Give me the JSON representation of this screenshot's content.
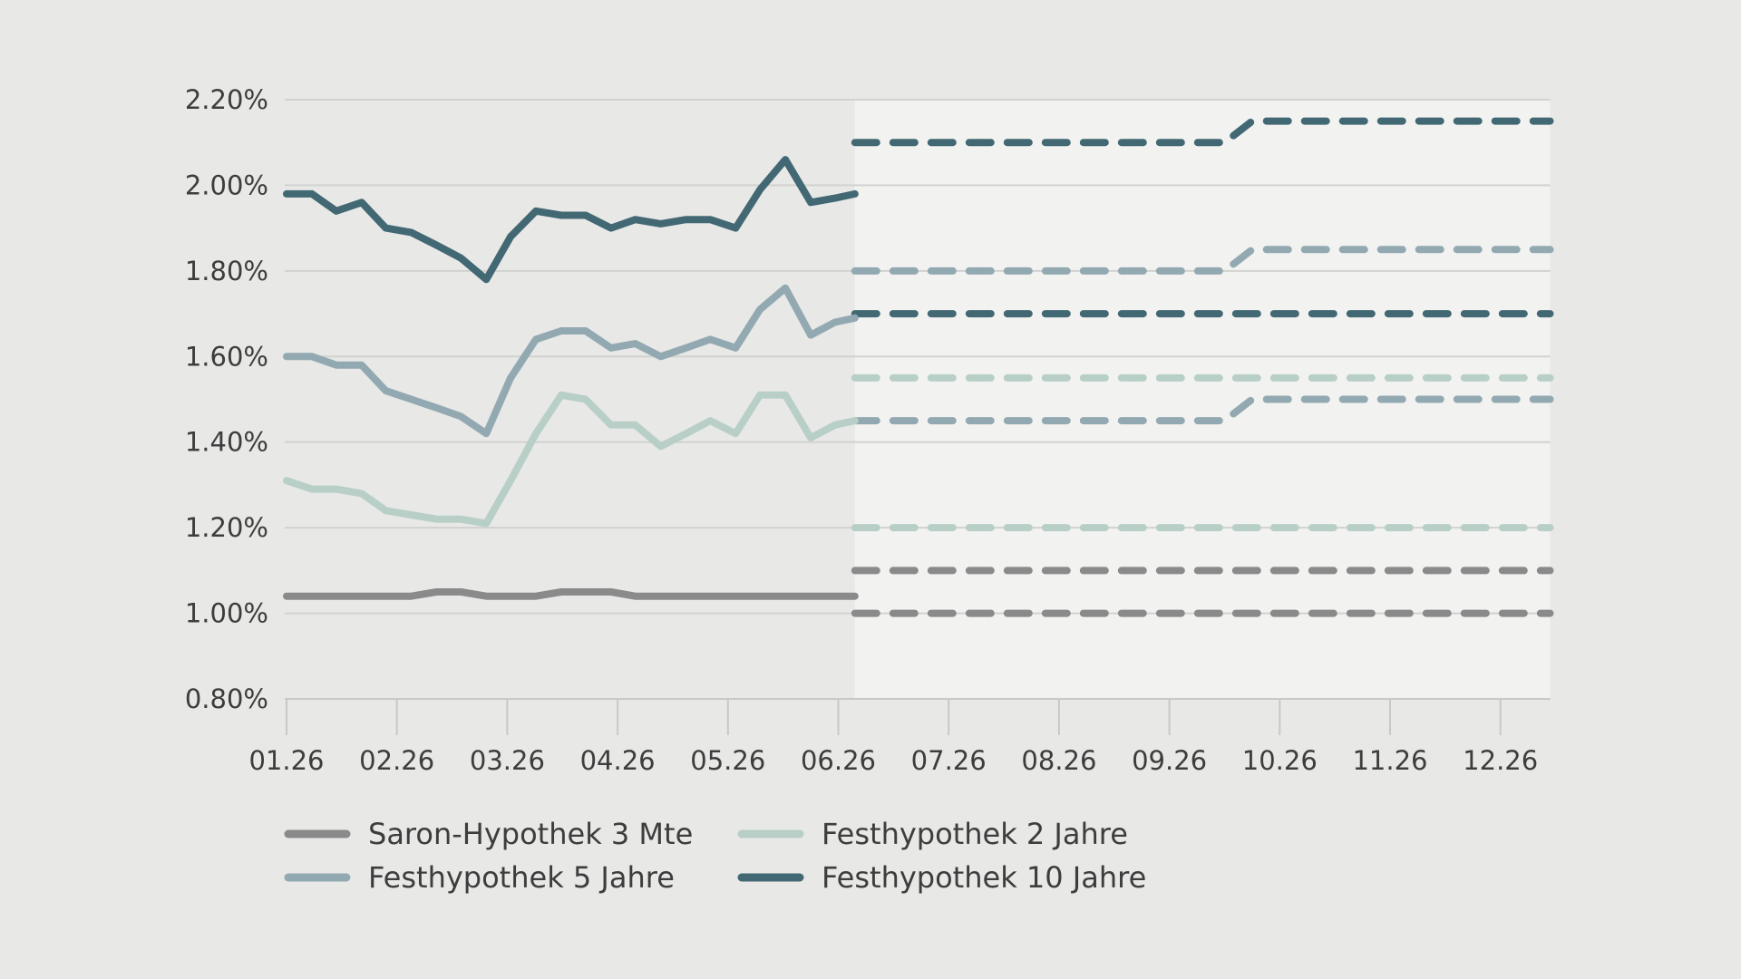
{
  "chart_data": {
    "type": "line",
    "ylim": [
      0.8,
      2.2
    ],
    "xlim": [
      0,
      11.45
    ],
    "y_ticks": [
      {
        "value": 0.8,
        "label": "0.80%"
      },
      {
        "value": 1.0,
        "label": "1.00%"
      },
      {
        "value": 1.2,
        "label": "1.20%"
      },
      {
        "value": 1.4,
        "label": "1.40%"
      },
      {
        "value": 1.6,
        "label": "1.60%"
      },
      {
        "value": 1.8,
        "label": "1.80%"
      },
      {
        "value": 2.0,
        "label": "2.00%"
      },
      {
        "value": 2.2,
        "label": "2.20%"
      }
    ],
    "x_ticks": [
      {
        "value": 0,
        "label": "01.26"
      },
      {
        "value": 1,
        "label": "02.26"
      },
      {
        "value": 2,
        "label": "03.26"
      },
      {
        "value": 3,
        "label": "04.26"
      },
      {
        "value": 4,
        "label": "05.26"
      },
      {
        "value": 5,
        "label": "06.26"
      },
      {
        "value": 6,
        "label": "07.26"
      },
      {
        "value": 7,
        "label": "08.26"
      },
      {
        "value": 8,
        "label": "09.26"
      },
      {
        "value": 9,
        "label": "10.26"
      },
      {
        "value": 10,
        "label": "11.26"
      },
      {
        "value": 11,
        "label": "12.26"
      }
    ],
    "forecast_start": 5.15,
    "grid": true,
    "legend_position": "bottom-left",
    "colors": {
      "saron": "#8a8a8a",
      "fix5": "#93a9b1",
      "fix2": "#b8cfc7",
      "fix10": "#426873",
      "background": "#e8e8e7",
      "forecast_background": "#f2f2f1",
      "grid": "#d2d2d0",
      "axis": "#c8c8c6"
    },
    "series": [
      {
        "key": "saron",
        "name": "Saron-Hypothek 3 Mte",
        "color": "#8a8a8a",
        "x": [
          0,
          0.23,
          0.45,
          0.68,
          0.9,
          1.13,
          1.36,
          1.58,
          1.81,
          2.03,
          2.26,
          2.49,
          2.71,
          2.94,
          3.16,
          3.39,
          3.62,
          3.84,
          4.07,
          4.29,
          4.52,
          4.75,
          4.97,
          5.15
        ],
        "values": [
          1.04,
          1.04,
          1.04,
          1.04,
          1.04,
          1.04,
          1.05,
          1.05,
          1.04,
          1.04,
          1.04,
          1.05,
          1.05,
          1.05,
          1.04,
          1.04,
          1.04,
          1.04,
          1.04,
          1.04,
          1.04,
          1.04,
          1.04,
          1.04
        ]
      },
      {
        "key": "fix2",
        "name": "Festhypothek 2 Jahre",
        "color": "#b8cfc7",
        "x": [
          0,
          0.23,
          0.45,
          0.68,
          0.9,
          1.13,
          1.36,
          1.58,
          1.81,
          2.03,
          2.26,
          2.49,
          2.71,
          2.94,
          3.16,
          3.39,
          3.62,
          3.84,
          4.07,
          4.29,
          4.52,
          4.75,
          4.97,
          5.15
        ],
        "values": [
          1.31,
          1.29,
          1.29,
          1.28,
          1.24,
          1.23,
          1.22,
          1.22,
          1.21,
          1.31,
          1.42,
          1.51,
          1.5,
          1.44,
          1.44,
          1.39,
          1.42,
          1.45,
          1.42,
          1.51,
          1.51,
          1.41,
          1.44,
          1.45
        ]
      },
      {
        "key": "fix5",
        "name": "Festhypothek 5 Jahre",
        "color": "#93a9b1",
        "x": [
          0,
          0.23,
          0.45,
          0.68,
          0.9,
          1.13,
          1.36,
          1.58,
          1.81,
          2.03,
          2.26,
          2.49,
          2.71,
          2.94,
          3.16,
          3.39,
          3.62,
          3.84,
          4.07,
          4.29,
          4.52,
          4.75,
          4.97,
          5.15
        ],
        "values": [
          1.6,
          1.6,
          1.58,
          1.58,
          1.52,
          1.5,
          1.48,
          1.46,
          1.42,
          1.55,
          1.64,
          1.66,
          1.66,
          1.62,
          1.63,
          1.6,
          1.62,
          1.64,
          1.62,
          1.71,
          1.76,
          1.65,
          1.68,
          1.69
        ]
      },
      {
        "key": "fix10",
        "name": "Festhypothek 10 Jahre",
        "color": "#426873",
        "x": [
          0,
          0.23,
          0.45,
          0.68,
          0.9,
          1.13,
          1.36,
          1.58,
          1.81,
          2.03,
          2.26,
          2.49,
          2.71,
          2.94,
          3.16,
          3.39,
          3.62,
          3.84,
          4.07,
          4.29,
          4.52,
          4.75,
          4.97,
          5.15
        ],
        "values": [
          1.98,
          1.98,
          1.94,
          1.96,
          1.9,
          1.89,
          1.86,
          1.83,
          1.78,
          1.88,
          1.94,
          1.93,
          1.93,
          1.9,
          1.92,
          1.91,
          1.92,
          1.92,
          1.9,
          1.99,
          2.06,
          1.96,
          1.97,
          1.98
        ]
      }
    ],
    "forecasts": [
      {
        "series": "fix10",
        "color": "#426873",
        "x": [
          5.15,
          8.5,
          8.75,
          11.45
        ],
        "values": [
          2.1,
          2.1,
          2.15,
          2.15
        ]
      },
      {
        "series": "fix5",
        "color": "#93a9b1",
        "x": [
          5.15,
          8.5,
          8.75,
          11.45
        ],
        "values": [
          1.8,
          1.8,
          1.85,
          1.85
        ]
      },
      {
        "series": "fix10",
        "color": "#426873",
        "x": [
          5.15,
          11.45
        ],
        "values": [
          1.7,
          1.7
        ]
      },
      {
        "series": "fix2",
        "color": "#b8cfc7",
        "x": [
          5.15,
          11.45
        ],
        "values": [
          1.55,
          1.55
        ]
      },
      {
        "series": "fix5",
        "color": "#93a9b1",
        "x": [
          5.15,
          8.5,
          8.75,
          11.45
        ],
        "values": [
          1.45,
          1.45,
          1.5,
          1.5
        ]
      },
      {
        "series": "fix2",
        "color": "#b8cfc7",
        "x": [
          5.15,
          11.45
        ],
        "values": [
          1.2,
          1.2
        ]
      },
      {
        "series": "saron",
        "color": "#8a8a8a",
        "x": [
          5.15,
          11.45
        ],
        "values": [
          1.1,
          1.1
        ]
      },
      {
        "series": "saron",
        "color": "#8a8a8a",
        "x": [
          5.15,
          11.45
        ],
        "values": [
          1.0,
          1.0
        ]
      }
    ],
    "legend": [
      {
        "series": "saron",
        "label": "Saron-Hypothek 3 Mte",
        "color": "#8a8a8a"
      },
      {
        "series": "fix2",
        "label": "Festhypothek 2 Jahre",
        "color": "#b8cfc7"
      },
      {
        "series": "fix5",
        "label": "Festhypothek 5 Jahre",
        "color": "#93a9b1"
      },
      {
        "series": "fix10",
        "label": "Festhypothek 10 Jahre",
        "color": "#426873"
      }
    ]
  }
}
